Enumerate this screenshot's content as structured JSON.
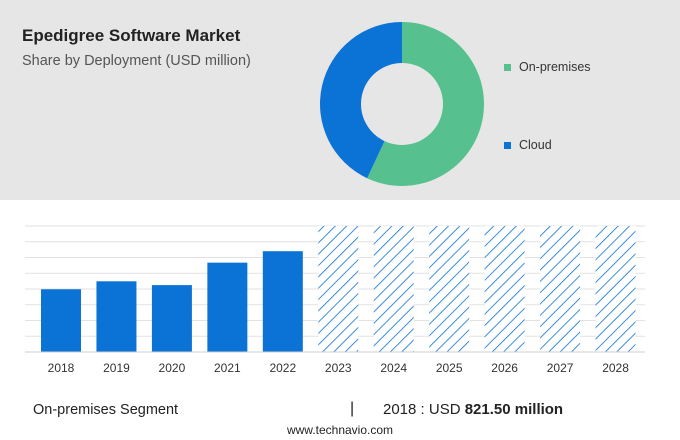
{
  "header": {
    "title": "Epedigree Software Market",
    "subtitle": "Share by Deployment (USD million)"
  },
  "colors": {
    "bar": "#0b73d6",
    "on_premises": "#56c18e",
    "cloud": "#0b73d6",
    "forecast_hatch": "#0b73d6"
  },
  "chart_data": [
    {
      "type": "pie",
      "donut": true,
      "categories": [
        "On-premises",
        "Cloud"
      ],
      "values": [
        57,
        43
      ],
      "legend": [
        "On-premises",
        "Cloud"
      ]
    },
    {
      "type": "bar",
      "categories": [
        "2018",
        "2019",
        "2020",
        "2021",
        "2022",
        "2023",
        "2024",
        "2025",
        "2026",
        "2027",
        "2028"
      ],
      "values": [
        821.5,
        926,
        876,
        1170,
        1320,
        null,
        null,
        null,
        null,
        null,
        null
      ],
      "forecast_categories": [
        "2023",
        "2024",
        "2025",
        "2026",
        "2027",
        "2028"
      ],
      "ylim": [
        0,
        1650
      ],
      "grid": true
    }
  ],
  "footer": {
    "segment_label": "On-premises Segment",
    "separator": "|",
    "year_text": "2018 : USD ",
    "value_text": "821.50 million",
    "source": "www.technavio.com"
  }
}
